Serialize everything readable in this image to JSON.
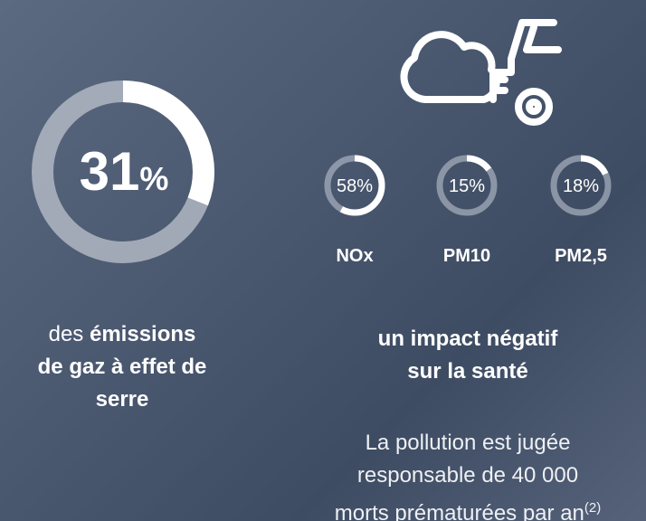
{
  "main_stat": {
    "value": 31,
    "unit": "%",
    "prefix": "des",
    "emphasis_lines": [
      "émissions",
      "de gaz à effet de",
      "serre"
    ]
  },
  "pollutants": [
    {
      "name": "NOx",
      "value": 58,
      "value_label": "58%"
    },
    {
      "name": "PM10",
      "value": 15,
      "value_label": "15%"
    },
    {
      "name": "PM2,5",
      "value": 18,
      "value_label": "18%"
    }
  ],
  "impact": {
    "title_lines": [
      "un impact négatif",
      "sur la santé"
    ],
    "body_lines": [
      "La pollution est jugée",
      "responsable de 40 000",
      "morts prématurées par an"
    ],
    "footnote": "(2)"
  }
}
